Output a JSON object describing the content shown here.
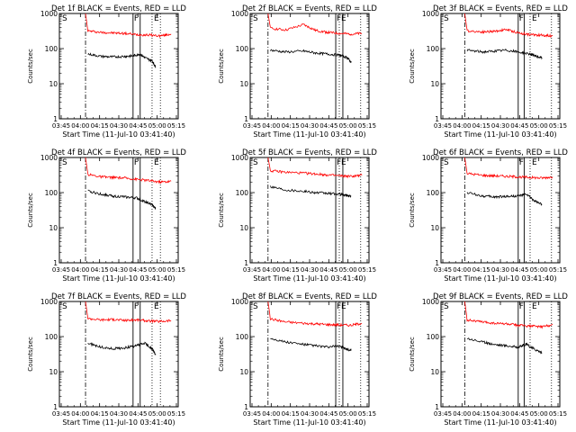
{
  "chart_data": [
    {
      "type": "line",
      "title": "Det 1f BLACK = Events, RED = LLD",
      "xlabel": "Start Time (11-Jul-10 03:41:40)",
      "ylabel": "Counts/sec",
      "x_ticks": [
        "03:45",
        "04:00",
        "04:15",
        "04:30",
        "04:45",
        "05:00",
        "05:15"
      ],
      "y_ticks": [
        "1",
        "10",
        "100",
        "1000"
      ],
      "ylim": [
        1,
        1000
      ],
      "y_scale": "log",
      "markers": {
        "S": "S",
        "F": "F",
        "E": "E"
      },
      "series": [
        {
          "color": "#ff0000",
          "values": [
            [
              0.22,
              1000
            ],
            [
              0.24,
              320
            ],
            [
              0.35,
              290
            ],
            [
              0.45,
              280
            ],
            [
              0.55,
              270
            ],
            [
              0.65,
              250
            ],
            [
              0.75,
              245
            ],
            [
              0.85,
              230
            ],
            [
              0.94,
              260
            ]
          ]
        },
        {
          "color": "#000000",
          "values": [
            [
              0.24,
              70
            ],
            [
              0.35,
              60
            ],
            [
              0.45,
              58
            ],
            [
              0.55,
              60
            ],
            [
              0.62,
              62
            ],
            [
              0.68,
              70
            ],
            [
              0.72,
              55
            ],
            [
              0.78,
              45
            ],
            [
              0.81,
              30
            ]
          ]
        }
      ]
    },
    {
      "type": "line",
      "title": "Det 2f BLACK = Events, RED = LLD",
      "xlabel": "Start Time (11-Jul-10 03:41:40)",
      "ylabel": "Counts/sec",
      "x_ticks": [
        "03:45",
        "04:00",
        "04:15",
        "04:30",
        "04:45",
        "05:00",
        "05:15"
      ],
      "y_ticks": [
        "1",
        "10",
        "100",
        "1000"
      ],
      "ylim": [
        1,
        1000
      ],
      "y_scale": "log",
      "markers": {
        "S": "S",
        "F": "F",
        "E": "E"
      },
      "series": [
        {
          "color": "#ff0000",
          "values": [
            [
              0.15,
              1000
            ],
            [
              0.17,
              380
            ],
            [
              0.3,
              340
            ],
            [
              0.45,
              480
            ],
            [
              0.55,
              330
            ],
            [
              0.65,
              290
            ],
            [
              0.75,
              270
            ],
            [
              0.85,
              260
            ],
            [
              0.94,
              270
            ]
          ]
        },
        {
          "color": "#000000",
          "values": [
            [
              0.17,
              90
            ],
            [
              0.3,
              80
            ],
            [
              0.45,
              85
            ],
            [
              0.55,
              75
            ],
            [
              0.65,
              70
            ],
            [
              0.75,
              65
            ],
            [
              0.82,
              55
            ],
            [
              0.85,
              40
            ]
          ]
        }
      ]
    },
    {
      "type": "line",
      "title": "Det 3f BLACK = Events, RED = LLD",
      "xlabel": "Start Time (11-Jul-10 03:41:40)",
      "ylabel": "Counts/sec",
      "x_ticks": [
        "03:45",
        "04:00",
        "04:15",
        "04:30",
        "04:45",
        "05:00",
        "05:15"
      ],
      "y_ticks": [
        "1",
        "10",
        "100",
        "1000"
      ],
      "ylim": [
        1,
        1000
      ],
      "y_scale": "log",
      "markers": {
        "S": "S",
        "F": "F",
        "E": "E"
      },
      "series": [
        {
          "color": "#ff0000",
          "values": [
            [
              0.2,
              1000
            ],
            [
              0.22,
              320
            ],
            [
              0.35,
              300
            ],
            [
              0.45,
              310
            ],
            [
              0.55,
              350
            ],
            [
              0.65,
              280
            ],
            [
              0.75,
              250
            ],
            [
              0.85,
              240
            ],
            [
              0.94,
              230
            ]
          ]
        },
        {
          "color": "#000000",
          "values": [
            [
              0.22,
              90
            ],
            [
              0.35,
              80
            ],
            [
              0.45,
              85
            ],
            [
              0.55,
              90
            ],
            [
              0.65,
              80
            ],
            [
              0.75,
              70
            ],
            [
              0.8,
              60
            ],
            [
              0.85,
              55
            ]
          ]
        }
      ]
    },
    {
      "type": "line",
      "title": "Det 4f BLACK = Events, RED = LLD",
      "xlabel": "Start Time (11-Jul-10 03:41:40)",
      "ylabel": "Counts/sec",
      "x_ticks": [
        "03:45",
        "04:00",
        "04:15",
        "04:30",
        "04:45",
        "05:00",
        "05:15"
      ],
      "y_ticks": [
        "1",
        "10",
        "100",
        "1000"
      ],
      "ylim": [
        1,
        1000
      ],
      "y_scale": "log",
      "markers": {
        "S": "S",
        "F": "F",
        "E": "E"
      },
      "series": [
        {
          "color": "#ff0000",
          "values": [
            [
              0.22,
              1000
            ],
            [
              0.24,
              330
            ],
            [
              0.35,
              280
            ],
            [
              0.45,
              270
            ],
            [
              0.55,
              260
            ],
            [
              0.65,
              240
            ],
            [
              0.75,
              220
            ],
            [
              0.85,
              200
            ],
            [
              0.94,
              210
            ]
          ]
        },
        {
          "color": "#000000",
          "values": [
            [
              0.24,
              110
            ],
            [
              0.35,
              90
            ],
            [
              0.45,
              80
            ],
            [
              0.55,
              75
            ],
            [
              0.65,
              70
            ],
            [
              0.72,
              55
            ],
            [
              0.78,
              45
            ],
            [
              0.81,
              35
            ]
          ]
        }
      ]
    },
    {
      "type": "line",
      "title": "Det 5f BLACK = Events, RED = LLD",
      "xlabel": "Start Time (11-Jul-10 03:41:40)",
      "ylabel": "Counts/sec",
      "x_ticks": [
        "03:45",
        "04:00",
        "04:15",
        "04:30",
        "04:45",
        "05:00",
        "05:15"
      ],
      "y_ticks": [
        "1",
        "10",
        "100",
        "1000"
      ],
      "ylim": [
        1,
        1000
      ],
      "y_scale": "log",
      "markers": {
        "S": "S",
        "F": "F",
        "E": "E"
      },
      "series": [
        {
          "color": "#ff0000",
          "values": [
            [
              0.15,
              1000
            ],
            [
              0.17,
              420
            ],
            [
              0.3,
              380
            ],
            [
              0.45,
              360
            ],
            [
              0.55,
              340
            ],
            [
              0.65,
              320
            ],
            [
              0.75,
              300
            ],
            [
              0.85,
              290
            ],
            [
              0.94,
              310
            ]
          ]
        },
        {
          "color": "#000000",
          "values": [
            [
              0.17,
              150
            ],
            [
              0.3,
              120
            ],
            [
              0.45,
              110
            ],
            [
              0.55,
              100
            ],
            [
              0.65,
              95
            ],
            [
              0.75,
              90
            ],
            [
              0.8,
              85
            ],
            [
              0.85,
              80
            ]
          ]
        }
      ]
    },
    {
      "type": "line",
      "title": "Det 6f BLACK = Events, RED = LLD",
      "xlabel": "Start Time (11-Jul-10 03:41:40)",
      "ylabel": "Counts/sec",
      "x_ticks": [
        "03:45",
        "04:00",
        "04:15",
        "04:30",
        "04:45",
        "05:00",
        "05:15"
      ],
      "y_ticks": [
        "1",
        "10",
        "100",
        "1000"
      ],
      "ylim": [
        1,
        1000
      ],
      "y_scale": "log",
      "markers": {
        "S": "S",
        "F": "F",
        "E": "E"
      },
      "series": [
        {
          "color": "#ff0000",
          "values": [
            [
              0.2,
              1000
            ],
            [
              0.22,
              350
            ],
            [
              0.35,
              310
            ],
            [
              0.45,
              300
            ],
            [
              0.55,
              290
            ],
            [
              0.65,
              280
            ],
            [
              0.75,
              270
            ],
            [
              0.85,
              260
            ],
            [
              0.94,
              280
            ]
          ]
        },
        {
          "color": "#000000",
          "values": [
            [
              0.22,
              100
            ],
            [
              0.35,
              80
            ],
            [
              0.45,
              75
            ],
            [
              0.55,
              78
            ],
            [
              0.65,
              80
            ],
            [
              0.72,
              90
            ],
            [
              0.78,
              60
            ],
            [
              0.85,
              45
            ]
          ]
        }
      ]
    },
    {
      "type": "line",
      "title": "Det 7f BLACK = Events, RED = LLD",
      "xlabel": "Start Time (11-Jul-10 03:41:40)",
      "ylabel": "Counts/sec",
      "x_ticks": [
        "03:45",
        "04:00",
        "04:15",
        "04:30",
        "04:45",
        "05:00",
        "05:15"
      ],
      "y_ticks": [
        "1",
        "10",
        "100",
        "1000"
      ],
      "ylim": [
        1,
        1000
      ],
      "y_scale": "log",
      "markers": {
        "S": "S",
        "F": "F",
        "E": "E"
      },
      "series": [
        {
          "color": "#ff0000",
          "values": [
            [
              0.22,
              1000
            ],
            [
              0.24,
              330
            ],
            [
              0.35,
              300
            ],
            [
              0.45,
              310
            ],
            [
              0.55,
              290
            ],
            [
              0.65,
              300
            ],
            [
              0.75,
              280
            ],
            [
              0.85,
              270
            ],
            [
              0.94,
              290
            ]
          ]
        },
        {
          "color": "#000000",
          "values": [
            [
              0.24,
              65
            ],
            [
              0.35,
              50
            ],
            [
              0.45,
              45
            ],
            [
              0.55,
              48
            ],
            [
              0.65,
              55
            ],
            [
              0.72,
              65
            ],
            [
              0.78,
              45
            ],
            [
              0.81,
              30
            ]
          ]
        }
      ]
    },
    {
      "type": "line",
      "title": "Det 8f BLACK = Events, RED = LLD",
      "xlabel": "Start Time (11-Jul-10 03:41:40)",
      "ylabel": "Counts/sec",
      "x_ticks": [
        "03:45",
        "04:00",
        "04:15",
        "04:30",
        "04:45",
        "05:00",
        "05:15"
      ],
      "y_ticks": [
        "1",
        "10",
        "100",
        "1000"
      ],
      "ylim": [
        1,
        1000
      ],
      "y_scale": "log",
      "markers": {
        "S": "S",
        "F": "F",
        "E": "E"
      },
      "series": [
        {
          "color": "#ff0000",
          "values": [
            [
              0.15,
              1000
            ],
            [
              0.17,
              320
            ],
            [
              0.3,
              260
            ],
            [
              0.45,
              240
            ],
            [
              0.55,
              230
            ],
            [
              0.65,
              220
            ],
            [
              0.75,
              215
            ],
            [
              0.85,
              210
            ],
            [
              0.94,
              240
            ]
          ]
        },
        {
          "color": "#000000",
          "values": [
            [
              0.17,
              90
            ],
            [
              0.3,
              70
            ],
            [
              0.45,
              60
            ],
            [
              0.55,
              55
            ],
            [
              0.65,
              50
            ],
            [
              0.75,
              55
            ],
            [
              0.8,
              45
            ],
            [
              0.85,
              40
            ]
          ]
        }
      ]
    },
    {
      "type": "line",
      "title": "Det 9f BLACK = Events, RED = LLD",
      "xlabel": "Start Time (11-Jul-10 03:41:40)",
      "ylabel": "Counts/sec",
      "x_ticks": [
        "03:45",
        "04:00",
        "04:15",
        "04:30",
        "04:45",
        "05:00",
        "05:15"
      ],
      "y_ticks": [
        "1",
        "10",
        "100",
        "1000"
      ],
      "ylim": [
        1,
        1000
      ],
      "y_scale": "log",
      "markers": {
        "S": "S",
        "F": "F",
        "E": "E"
      },
      "series": [
        {
          "color": "#ff0000",
          "values": [
            [
              0.2,
              1000
            ],
            [
              0.22,
              300
            ],
            [
              0.35,
              260
            ],
            [
              0.45,
              240
            ],
            [
              0.55,
              230
            ],
            [
              0.65,
              210
            ],
            [
              0.75,
              200
            ],
            [
              0.85,
              190
            ],
            [
              0.94,
              220
            ]
          ]
        },
        {
          "color": "#000000",
          "values": [
            [
              0.22,
              90
            ],
            [
              0.35,
              70
            ],
            [
              0.45,
              60
            ],
            [
              0.55,
              55
            ],
            [
              0.65,
              50
            ],
            [
              0.72,
              60
            ],
            [
              0.78,
              45
            ],
            [
              0.85,
              35
            ]
          ]
        }
      ]
    }
  ]
}
